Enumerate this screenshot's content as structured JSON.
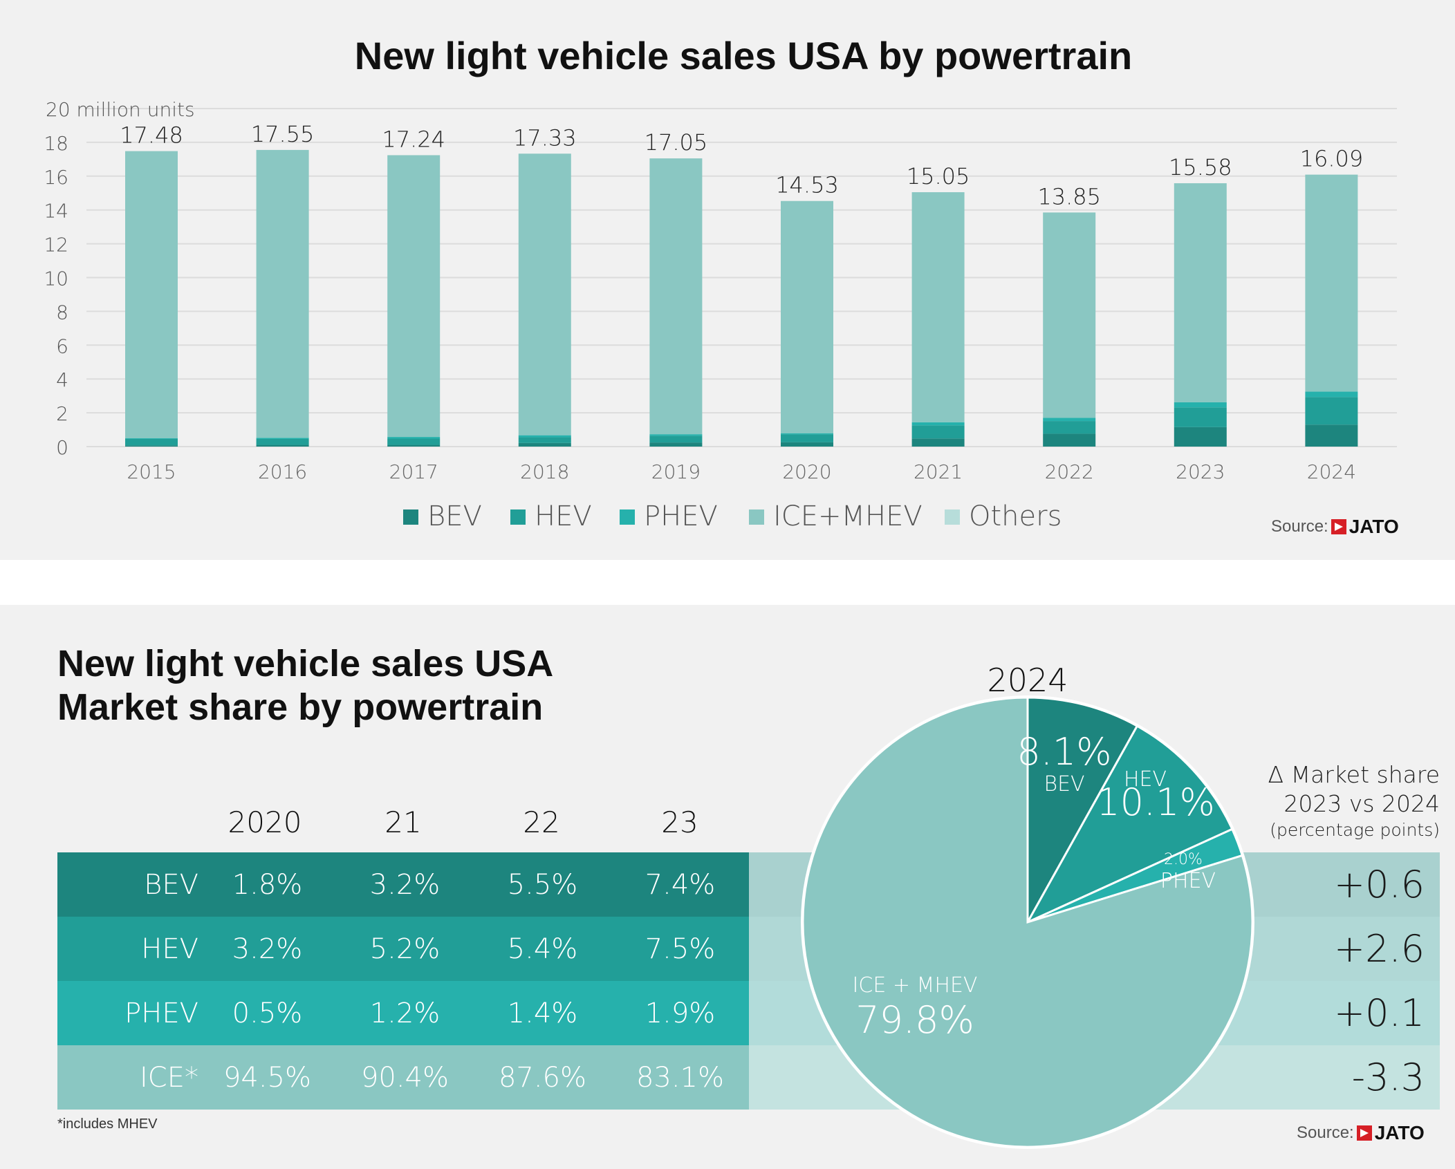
{
  "top": {
    "title": "New light vehicle sales USA by powertrain",
    "source_label": "Source:",
    "source_brand": "JATO"
  },
  "bottom": {
    "title_line1": "New light vehicle sales USA",
    "title_line2": "Market share by powertrain",
    "table": {
      "headers": [
        "2020",
        "21",
        "22",
        "23"
      ],
      "rows": [
        {
          "label": "BEV",
          "values": [
            "1.8%",
            "3.2%",
            "5.5%",
            "7.4%"
          ],
          "delta": "+0.6",
          "color": "#1d857e",
          "delta_bg": "#a9d1cf"
        },
        {
          "label": "HEV",
          "values": [
            "3.2%",
            "5.2%",
            "5.4%",
            "7.5%"
          ],
          "delta": "+2.6",
          "color": "#219e97",
          "delta_bg": "#b0d8d6"
        },
        {
          "label": "PHEV",
          "values": [
            "0.5%",
            "1.2%",
            "1.4%",
            "1.9%"
          ],
          "delta": "+0.1",
          "color": "#26b1ac",
          "delta_bg": "#b2dcda"
        },
        {
          "label": "ICE*",
          "values": [
            "94.5%",
            "90.4%",
            "87.6%",
            "83.1%"
          ],
          "delta": "-3.3",
          "color": "#8ac7c2",
          "delta_bg": "#c4e3e0"
        }
      ]
    },
    "delta_title_line1": "Δ Market share",
    "delta_title_line2": "2023 vs 2024",
    "delta_title_line3": "(percentage points)",
    "footnote": "*includes MHEV",
    "source_label": "Source:",
    "source_brand": "JATO"
  },
  "chart_data": [
    {
      "type": "bar",
      "stacked": true,
      "title": "New light vehicle sales USA by powertrain",
      "ylabel": "20 million units",
      "ylim": [
        0,
        20
      ],
      "yticks": [
        0,
        2,
        4,
        6,
        8,
        10,
        12,
        14,
        16,
        18,
        20
      ],
      "grid": true,
      "legend_position": "bottom",
      "categories": [
        "2015",
        "2016",
        "2017",
        "2018",
        "2019",
        "2020",
        "2021",
        "2022",
        "2023",
        "2024"
      ],
      "totals": [
        17.48,
        17.55,
        17.24,
        17.33,
        17.05,
        14.53,
        15.05,
        13.85,
        15.58,
        16.09
      ],
      "total_labels": [
        "17.48",
        "17.55",
        "17.24",
        "17.33",
        "17.05",
        "14.53",
        "15.05",
        "13.85",
        "15.58",
        "16.09"
      ],
      "series": [
        {
          "name": "BEV",
          "color": "#1d857e",
          "values": [
            0.07,
            0.1,
            0.1,
            0.21,
            0.24,
            0.26,
            0.48,
            0.76,
            1.15,
            1.3
          ]
        },
        {
          "name": "HEV",
          "color": "#219e97",
          "values": [
            0.38,
            0.35,
            0.37,
            0.34,
            0.4,
            0.46,
            0.78,
            0.75,
            1.17,
            1.63
          ]
        },
        {
          "name": "PHEV",
          "color": "#26b1ac",
          "values": [
            0.04,
            0.07,
            0.1,
            0.12,
            0.09,
            0.07,
            0.18,
            0.19,
            0.3,
            0.32
          ]
        },
        {
          "name": "ICE+MHEV",
          "color": "#8ac7c2",
          "values": [
            16.99,
            17.03,
            16.67,
            16.66,
            16.32,
            13.74,
            13.61,
            12.15,
            12.96,
            12.84
          ]
        },
        {
          "name": "Others",
          "color": "#b7ddda",
          "values": [
            0,
            0,
            0,
            0,
            0,
            0,
            0,
            0,
            0,
            0
          ]
        }
      ]
    },
    {
      "type": "pie",
      "title": "2024",
      "slices": [
        {
          "name": "BEV",
          "label": "BEV",
          "value": 8.1,
          "value_label": "8.1%",
          "color": "#1d857e"
        },
        {
          "name": "HEV",
          "label": "HEV",
          "value": 10.1,
          "value_label": "10.1%",
          "color": "#219e97"
        },
        {
          "name": "PHEV",
          "label": "PHEV",
          "value": 2.0,
          "value_label": "2.0%",
          "color": "#26b1ac"
        },
        {
          "name": "ICE + MHEV",
          "label": "ICE + MHEV",
          "value": 79.8,
          "value_label": "79.8%",
          "color": "#8ac7c2"
        }
      ]
    }
  ]
}
